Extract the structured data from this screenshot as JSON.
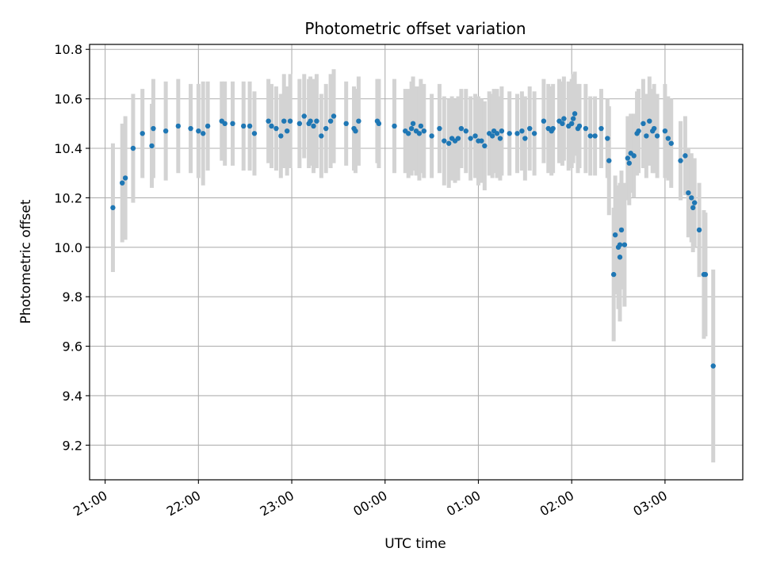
{
  "chart_data": {
    "type": "scatter",
    "title": "Photometric offset variation",
    "xlabel": "UTC time",
    "ylabel": "Photometric offset",
    "grid": true,
    "x_unit": "UTC time (HH:MM)",
    "xlim": [
      "20:50",
      "03:50"
    ],
    "ylim": [
      9.06,
      10.82
    ],
    "x_ticks": [
      "21:00",
      "22:00",
      "23:00",
      "00:00",
      "01:00",
      "02:00",
      "03:00"
    ],
    "y_ticks": [
      "9.2",
      "9.4",
      "9.6",
      "9.8",
      "10.0",
      "10.2",
      "10.4",
      "10.6",
      "10.8"
    ],
    "y_tick_values": [
      9.2,
      9.4,
      9.6,
      9.8,
      10.0,
      10.2,
      10.4,
      10.6,
      10.8
    ],
    "colors": {
      "point": "#1f77b4",
      "errorbar": "#d3d3d3",
      "grid": "#b0b0b0"
    },
    "points": [
      [
        "21:05",
        10.16,
        0.26
      ],
      [
        "21:11",
        10.26,
        0.24
      ],
      [
        "21:13",
        10.28,
        0.25
      ],
      [
        "21:18",
        10.4,
        0.22
      ],
      [
        "21:24",
        10.46,
        0.18
      ],
      [
        "21:30",
        10.41,
        0.17
      ],
      [
        "21:31",
        10.48,
        0.2
      ],
      [
        "21:39",
        10.47,
        0.2
      ],
      [
        "21:47",
        10.49,
        0.19
      ],
      [
        "21:55",
        10.48,
        0.18
      ],
      [
        "22:00",
        10.47,
        0.19
      ],
      [
        "22:03",
        10.46,
        0.21
      ],
      [
        "22:06",
        10.49,
        0.18
      ],
      [
        "22:15",
        10.51,
        0.16
      ],
      [
        "22:17",
        10.5,
        0.17
      ],
      [
        "22:22",
        10.5,
        0.17
      ],
      [
        "22:29",
        10.49,
        0.18
      ],
      [
        "22:33",
        10.49,
        0.18
      ],
      [
        "22:36",
        10.46,
        0.17
      ],
      [
        "22:45",
        10.51,
        0.17
      ],
      [
        "22:47",
        10.49,
        0.17
      ],
      [
        "22:50",
        10.48,
        0.17
      ],
      [
        "22:53",
        10.45,
        0.17
      ],
      [
        "22:55",
        10.51,
        0.19
      ],
      [
        "22:57",
        10.47,
        0.18
      ],
      [
        "22:59",
        10.51,
        0.19
      ],
      [
        "23:05",
        10.5,
        0.18
      ],
      [
        "23:08",
        10.53,
        0.17
      ],
      [
        "23:11",
        10.5,
        0.18
      ],
      [
        "23:12",
        10.51,
        0.18
      ],
      [
        "23:14",
        10.49,
        0.19
      ],
      [
        "23:16",
        10.51,
        0.19
      ],
      [
        "23:19",
        10.45,
        0.17
      ],
      [
        "23:22",
        10.48,
        0.18
      ],
      [
        "23:25",
        10.51,
        0.19
      ],
      [
        "23:27",
        10.53,
        0.19
      ],
      [
        "23:35",
        10.5,
        0.17
      ],
      [
        "23:40",
        10.48,
        0.17
      ],
      [
        "23:41",
        10.47,
        0.17
      ],
      [
        "23:43",
        10.51,
        0.18
      ],
      [
        "23:55",
        10.51,
        0.17
      ],
      [
        "23:56",
        10.5,
        0.18
      ],
      [
        "00:06",
        10.49,
        0.19
      ],
      [
        "00:13",
        10.47,
        0.17
      ],
      [
        "00:15",
        10.46,
        0.18
      ],
      [
        "00:17",
        10.48,
        0.19
      ],
      [
        "00:18",
        10.5,
        0.19
      ],
      [
        "00:20",
        10.47,
        0.18
      ],
      [
        "00:22",
        10.46,
        0.19
      ],
      [
        "00:23",
        10.49,
        0.19
      ],
      [
        "00:25",
        10.47,
        0.19
      ],
      [
        "00:30",
        10.45,
        0.17
      ],
      [
        "00:35",
        10.48,
        0.18
      ],
      [
        "00:38",
        10.43,
        0.18
      ],
      [
        "00:41",
        10.42,
        0.18
      ],
      [
        "00:43",
        10.44,
        0.17
      ],
      [
        "00:45",
        10.43,
        0.17
      ],
      [
        "00:47",
        10.44,
        0.17
      ],
      [
        "00:49",
        10.48,
        0.16
      ],
      [
        "00:52",
        10.47,
        0.17
      ],
      [
        "00:55",
        10.44,
        0.17
      ],
      [
        "00:58",
        10.45,
        0.17
      ],
      [
        "01:00",
        10.43,
        0.18
      ],
      [
        "01:02",
        10.43,
        0.17
      ],
      [
        "01:04",
        10.41,
        0.18
      ],
      [
        "01:07",
        10.46,
        0.17
      ],
      [
        "01:09",
        10.45,
        0.17
      ],
      [
        "01:10",
        10.47,
        0.17
      ],
      [
        "01:12",
        10.46,
        0.18
      ],
      [
        "01:14",
        10.44,
        0.17
      ],
      [
        "01:15",
        10.47,
        0.18
      ],
      [
        "01:20",
        10.46,
        0.17
      ],
      [
        "01:25",
        10.46,
        0.16
      ],
      [
        "01:28",
        10.47,
        0.16
      ],
      [
        "01:30",
        10.44,
        0.17
      ],
      [
        "01:33",
        10.48,
        0.17
      ],
      [
        "01:36",
        10.46,
        0.17
      ],
      [
        "01:42",
        10.51,
        0.17
      ],
      [
        "01:45",
        10.48,
        0.18
      ],
      [
        "01:47",
        10.47,
        0.18
      ],
      [
        "01:48",
        10.48,
        0.18
      ],
      [
        "01:52",
        10.51,
        0.17
      ],
      [
        "01:54",
        10.5,
        0.17
      ],
      [
        "01:55",
        10.52,
        0.17
      ],
      [
        "01:58",
        10.49,
        0.18
      ],
      [
        "02:00",
        10.5,
        0.18
      ],
      [
        "02:01",
        10.52,
        0.18
      ],
      [
        "02:02",
        10.54,
        0.17
      ],
      [
        "02:04",
        10.48,
        0.18
      ],
      [
        "02:05",
        10.49,
        0.17
      ],
      [
        "02:09",
        10.48,
        0.18
      ],
      [
        "02:12",
        10.45,
        0.16
      ],
      [
        "02:15",
        10.45,
        0.16
      ],
      [
        "02:19",
        10.48,
        0.16
      ],
      [
        "02:23",
        10.44,
        0.16
      ],
      [
        "02:24",
        10.35,
        0.22
      ],
      [
        "02:27",
        9.89,
        0.27
      ],
      [
        "02:28",
        10.05,
        0.24
      ],
      [
        "02:30",
        10.0,
        0.25
      ],
      [
        "02:31",
        10.01,
        0.25
      ],
      [
        "02:31",
        9.96,
        0.26
      ],
      [
        "02:32",
        10.07,
        0.24
      ],
      [
        "02:34",
        10.01,
        0.25
      ],
      [
        "02:36",
        10.36,
        0.17
      ],
      [
        "02:37",
        10.34,
        0.17
      ],
      [
        "02:38",
        10.38,
        0.16
      ],
      [
        "02:40",
        10.37,
        0.17
      ],
      [
        "02:42",
        10.46,
        0.17
      ],
      [
        "02:43",
        10.47,
        0.17
      ],
      [
        "02:46",
        10.5,
        0.18
      ],
      [
        "02:48",
        10.45,
        0.17
      ],
      [
        "02:50",
        10.51,
        0.18
      ],
      [
        "02:52",
        10.47,
        0.17
      ],
      [
        "02:53",
        10.48,
        0.18
      ],
      [
        "02:55",
        10.45,
        0.17
      ],
      [
        "03:00",
        10.47,
        0.19
      ],
      [
        "03:02",
        10.44,
        0.17
      ],
      [
        "03:04",
        10.42,
        0.18
      ],
      [
        "03:10",
        10.35,
        0.16
      ],
      [
        "03:13",
        10.37,
        0.16
      ],
      [
        "03:15",
        10.22,
        0.18
      ],
      [
        "03:17",
        10.2,
        0.18
      ],
      [
        "03:18",
        10.16,
        0.18
      ],
      [
        "03:19",
        10.18,
        0.18
      ],
      [
        "03:22",
        10.07,
        0.19
      ],
      [
        "03:25",
        9.89,
        0.26
      ],
      [
        "03:26",
        9.89,
        0.25
      ],
      [
        "03:31",
        9.52,
        0.39
      ]
    ]
  }
}
